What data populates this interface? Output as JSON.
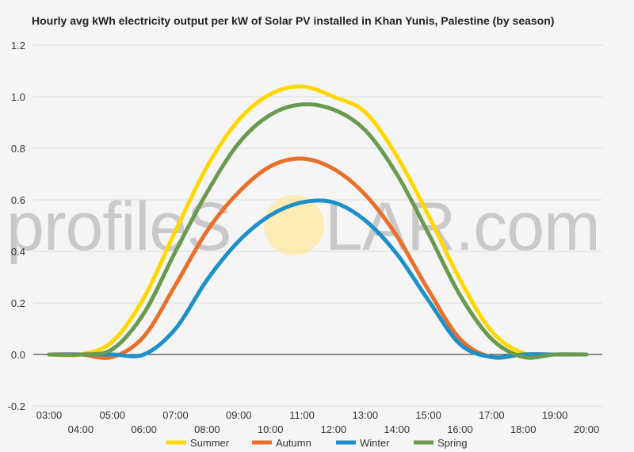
{
  "chart_data": {
    "type": "line",
    "title": "Hourly avg kWh electricity output per kW of Solar PV installed in Khan Yunis, Palestine (by season)",
    "xlabel": "",
    "ylabel": "",
    "ylim": [
      -0.2,
      1.2
    ],
    "yticks": [
      "-0.2",
      "0.0",
      "0.2",
      "0.4",
      "0.6",
      "0.8",
      "1.0",
      "1.2"
    ],
    "x": [
      "03:00",
      "04:00",
      "05:00",
      "06:00",
      "07:00",
      "08:00",
      "09:00",
      "10:00",
      "11:00",
      "12:00",
      "13:00",
      "14:00",
      "15:00",
      "16:00",
      "17:00",
      "18:00",
      "19:00",
      "20:00"
    ],
    "grid": true,
    "legend_position": "bottom",
    "series": [
      {
        "name": "Summer",
        "color": "#FFD700",
        "values": [
          0.0,
          0.0,
          0.05,
          0.22,
          0.48,
          0.73,
          0.91,
          1.01,
          1.04,
          1.0,
          0.94,
          0.77,
          0.54,
          0.29,
          0.09,
          0.005,
          0.0,
          0.0
        ]
      },
      {
        "name": "Autumn",
        "color": "#E8702A",
        "values": [
          0.0,
          0.0,
          -0.01,
          0.07,
          0.27,
          0.48,
          0.63,
          0.73,
          0.76,
          0.72,
          0.62,
          0.46,
          0.25,
          0.06,
          -0.01,
          0.0,
          0.0,
          0.0
        ]
      },
      {
        "name": "Winter",
        "color": "#1E90C8",
        "values": [
          0.0,
          0.0,
          0.0,
          0.0,
          0.1,
          0.29,
          0.44,
          0.54,
          0.59,
          0.59,
          0.52,
          0.39,
          0.21,
          0.04,
          -0.01,
          0.0,
          0.0,
          0.0
        ]
      },
      {
        "name": "Spring",
        "color": "#6A9A50",
        "values": [
          0.0,
          0.0,
          0.02,
          0.16,
          0.4,
          0.63,
          0.82,
          0.93,
          0.97,
          0.95,
          0.87,
          0.7,
          0.47,
          0.23,
          0.06,
          -0.01,
          0.0,
          0.0
        ]
      }
    ]
  },
  "watermark": {
    "text_left": "profileS",
    "text_right": "LAR.com",
    "sun_color": "#FFE8A0"
  }
}
